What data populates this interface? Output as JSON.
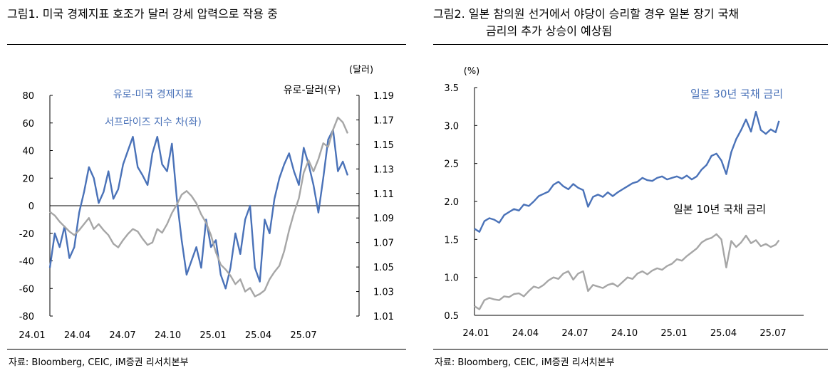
{
  "figures": [
    {
      "title": "그림1.  미국 경제지표 호조가 달러 강세 압력으로 작용 중",
      "source": "자료: Bloomberg, CEIC, iM증권 리서치본부",
      "unit_right": "(달러)",
      "series_labels": {
        "blue_line1": "유로-미국 경제지표",
        "blue_line2": "서프라이즈 지수 차(좌)",
        "gray": "유로-달러(우)"
      },
      "colors": {
        "blue": "#4a72b8",
        "gray": "#a6a6a6",
        "axis": "#000000"
      }
    },
    {
      "title_line1": "그림2.  일본 참의원 선거에서 야당이 승리할 경우 일본 장기 국채",
      "title_line2": "금리의 추가 상승이 예상됨",
      "source": "자료: Bloomberg, CEIC, iM증권 리서치본부",
      "unit_left": "(%)",
      "series_labels": {
        "blue": "일본 30년 국채 금리",
        "gray": "일본 10년 국채 금리"
      },
      "colors": {
        "blue": "#4a72b8",
        "gray": "#a6a6a6",
        "axis": "#000000"
      }
    }
  ],
  "chart_data": [
    {
      "type": "line",
      "title": "미국 경제지표 호조가 달러 강세 압력으로 작용 중",
      "x_ticks": [
        "24.01",
        "24.04",
        "24.07",
        "24.10",
        "25.01",
        "25.04",
        "25.07"
      ],
      "xlim": [
        0,
        19
      ],
      "y_left": {
        "label": "유로-미국 경제지표 서프라이즈 지수 차(좌)",
        "lim": [
          -80,
          80
        ],
        "ticks": [
          "80",
          "60",
          "40",
          "20",
          "0",
          "-20",
          "-40",
          "-60",
          "-80"
        ]
      },
      "y_right": {
        "label": "(달러)",
        "lim": [
          1.01,
          1.19
        ],
        "ticks": [
          "1.19",
          "1.17",
          "1.15",
          "1.13",
          "1.11",
          "1.09",
          "1.07",
          "1.05",
          "1.03",
          "1.01"
        ]
      },
      "zero_line": 0,
      "series": [
        {
          "name": "유로-미국 경제지표 서프라이즈 지수 차(좌)",
          "axis": "left",
          "color": "#4a72b8",
          "x": [
            0,
            0.3,
            0.6,
            0.9,
            1.2,
            1.5,
            1.8,
            2.1,
            2.4,
            2.7,
            3.0,
            3.3,
            3.6,
            3.9,
            4.2,
            4.5,
            4.8,
            5.1,
            5.4,
            5.7,
            6.0,
            6.3,
            6.6,
            6.9,
            7.2,
            7.5,
            7.8,
            8.1,
            8.4,
            8.7,
            9.0,
            9.3,
            9.6,
            9.9,
            10.2,
            10.5,
            10.8,
            11.1,
            11.4,
            11.7,
            12.0,
            12.3,
            12.6,
            12.9,
            13.2,
            13.5,
            13.8,
            14.1,
            14.4,
            14.7,
            15.0,
            15.3,
            15.6,
            15.9,
            16.2,
            16.5,
            16.8,
            17.1,
            17.4,
            17.7,
            18.0,
            18.3
          ],
          "y": [
            -45,
            -20,
            -30,
            -15,
            -38,
            -30,
            -5,
            10,
            28,
            20,
            2,
            10,
            25,
            5,
            12,
            30,
            40,
            50,
            28,
            22,
            15,
            38,
            50,
            30,
            25,
            45,
            5,
            -25,
            -50,
            -40,
            -30,
            -45,
            -10,
            -30,
            -25,
            -50,
            -60,
            -45,
            -20,
            -35,
            -10,
            0,
            -45,
            -55,
            -10,
            -20,
            5,
            20,
            30,
            38,
            25,
            15,
            42,
            30,
            15,
            -5,
            20,
            48,
            55,
            25,
            32,
            22
          ]
        },
        {
          "name": "유로-달러(우)",
          "axis": "right",
          "color": "#a6a6a6",
          "x": [
            0,
            0.3,
            0.6,
            0.9,
            1.2,
            1.5,
            1.8,
            2.1,
            2.4,
            2.7,
            3.0,
            3.3,
            3.6,
            3.9,
            4.2,
            4.5,
            4.8,
            5.1,
            5.4,
            5.7,
            6.0,
            6.3,
            6.6,
            6.9,
            7.2,
            7.5,
            7.8,
            8.1,
            8.4,
            8.7,
            9.0,
            9.3,
            9.6,
            9.9,
            10.2,
            10.5,
            10.8,
            11.1,
            11.4,
            11.7,
            12.0,
            12.3,
            12.6,
            12.9,
            13.2,
            13.5,
            13.8,
            14.1,
            14.4,
            14.7,
            15.0,
            15.3,
            15.6,
            15.9,
            16.2,
            16.5,
            16.8,
            17.1,
            17.4,
            17.7,
            18.0,
            18.3
          ],
          "y": [
            1.095,
            1.092,
            1.087,
            1.083,
            1.079,
            1.076,
            1.08,
            1.085,
            1.09,
            1.081,
            1.085,
            1.08,
            1.076,
            1.069,
            1.066,
            1.072,
            1.077,
            1.081,
            1.079,
            1.073,
            1.068,
            1.07,
            1.081,
            1.078,
            1.085,
            1.094,
            1.101,
            1.109,
            1.112,
            1.108,
            1.102,
            1.093,
            1.086,
            1.076,
            1.062,
            1.052,
            1.048,
            1.043,
            1.036,
            1.04,
            1.03,
            1.033,
            1.026,
            1.028,
            1.031,
            1.04,
            1.046,
            1.051,
            1.063,
            1.08,
            1.094,
            1.106,
            1.127,
            1.137,
            1.128,
            1.138,
            1.151,
            1.148,
            1.162,
            1.172,
            1.168,
            1.159
          ]
        }
      ]
    },
    {
      "type": "line",
      "title": "일본 참의원 선거에서 야당이 승리할 경우 일본 장기 국채 금리의 추가 상승이 예상됨",
      "x_ticks": [
        "24.01",
        "24.04",
        "24.07",
        "24.10",
        "25.01",
        "25.04",
        "25.07"
      ],
      "xlim": [
        0,
        20
      ],
      "y_left": {
        "label": "(%)",
        "lim": [
          0.5,
          3.5
        ],
        "ticks": [
          "3.5",
          "3.0",
          "2.5",
          "2.0",
          "1.5",
          "1.0",
          "0.5"
        ]
      },
      "series": [
        {
          "name": "일본 30년 국채 금리",
          "color": "#4a72b8",
          "x": [
            0,
            0.3,
            0.6,
            0.9,
            1.2,
            1.5,
            1.8,
            2.1,
            2.4,
            2.7,
            3.0,
            3.3,
            3.6,
            3.9,
            4.2,
            4.5,
            4.8,
            5.1,
            5.4,
            5.7,
            6.0,
            6.3,
            6.6,
            6.9,
            7.2,
            7.5,
            7.8,
            8.1,
            8.4,
            8.7,
            9.0,
            9.3,
            9.6,
            9.9,
            10.2,
            10.5,
            10.8,
            11.1,
            11.4,
            11.7,
            12.0,
            12.3,
            12.6,
            12.9,
            13.2,
            13.5,
            13.8,
            14.1,
            14.4,
            14.7,
            15.0,
            15.3,
            15.6,
            15.9,
            16.2,
            16.5,
            16.8,
            17.1,
            17.4,
            17.7,
            18.0,
            18.3,
            18.5
          ],
          "y": [
            1.64,
            1.6,
            1.74,
            1.78,
            1.76,
            1.72,
            1.82,
            1.86,
            1.9,
            1.88,
            1.96,
            1.94,
            2.0,
            2.07,
            2.1,
            2.13,
            2.22,
            2.26,
            2.2,
            2.16,
            2.23,
            2.18,
            2.15,
            1.93,
            2.06,
            2.09,
            2.06,
            2.12,
            2.07,
            2.12,
            2.16,
            2.2,
            2.24,
            2.26,
            2.31,
            2.28,
            2.27,
            2.31,
            2.33,
            2.29,
            2.31,
            2.33,
            2.3,
            2.34,
            2.29,
            2.33,
            2.42,
            2.48,
            2.6,
            2.63,
            2.54,
            2.36,
            2.65,
            2.82,
            2.94,
            3.08,
            2.92,
            3.18,
            2.94,
            2.89,
            2.95,
            2.91,
            3.06
          ]
        },
        {
          "name": "일본 10년 국채 금리",
          "color": "#a6a6a6",
          "x": [
            0,
            0.3,
            0.6,
            0.9,
            1.2,
            1.5,
            1.8,
            2.1,
            2.4,
            2.7,
            3.0,
            3.3,
            3.6,
            3.9,
            4.2,
            4.5,
            4.8,
            5.1,
            5.4,
            5.7,
            6.0,
            6.3,
            6.6,
            6.9,
            7.2,
            7.5,
            7.8,
            8.1,
            8.4,
            8.7,
            9.0,
            9.3,
            9.6,
            9.9,
            10.2,
            10.5,
            10.8,
            11.1,
            11.4,
            11.7,
            12.0,
            12.3,
            12.6,
            12.9,
            13.2,
            13.5,
            13.8,
            14.1,
            14.4,
            14.7,
            15.0,
            15.3,
            15.6,
            15.9,
            16.2,
            16.5,
            16.8,
            17.1,
            17.4,
            17.7,
            18.0,
            18.3,
            18.5
          ],
          "y": [
            0.62,
            0.58,
            0.7,
            0.73,
            0.71,
            0.7,
            0.75,
            0.74,
            0.78,
            0.79,
            0.75,
            0.82,
            0.88,
            0.86,
            0.9,
            0.96,
            1.0,
            0.98,
            1.05,
            1.08,
            0.97,
            1.05,
            1.08,
            0.82,
            0.9,
            0.88,
            0.86,
            0.9,
            0.92,
            0.88,
            0.94,
            1.0,
            0.98,
            1.05,
            1.08,
            1.04,
            1.09,
            1.12,
            1.1,
            1.15,
            1.18,
            1.24,
            1.22,
            1.28,
            1.33,
            1.38,
            1.46,
            1.5,
            1.52,
            1.57,
            1.5,
            1.13,
            1.48,
            1.4,
            1.46,
            1.55,
            1.45,
            1.49,
            1.41,
            1.44,
            1.4,
            1.43,
            1.49
          ]
        }
      ]
    }
  ]
}
